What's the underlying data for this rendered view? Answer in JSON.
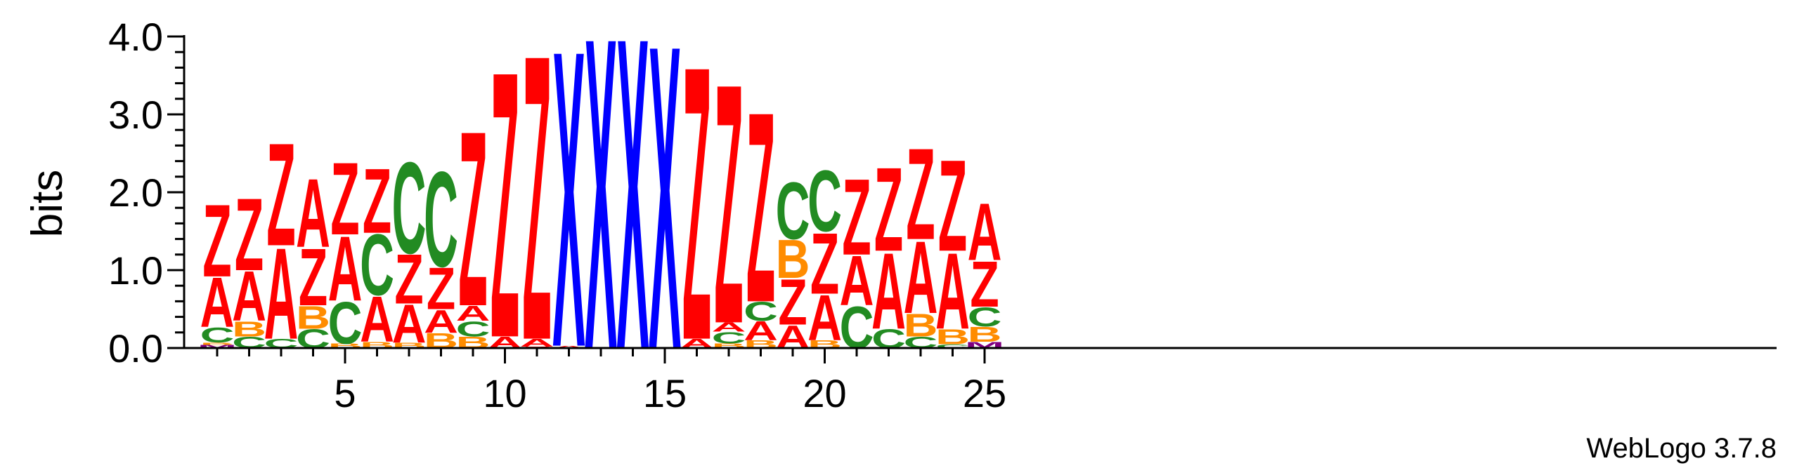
{
  "chart_data": {
    "type": "sequence_logo",
    "ylabel": "bits",
    "ylim": [
      0,
      4.0
    ],
    "yticks": [
      "0.0",
      "1.0",
      "2.0",
      "3.0",
      "4.0"
    ],
    "xticks": [
      5,
      10,
      15,
      20,
      25
    ],
    "credit": "WebLogo 3.7.8",
    "colors": {
      "Z": "#ff0000",
      "A": "#ff0000",
      "C": "#228b22",
      "B": "#ff8c00",
      "X": "#0000ff",
      "M": "#800080"
    },
    "positions": [
      {
        "x": 1,
        "stack": [
          [
            "M",
            0.04
          ],
          [
            "B",
            0.03
          ],
          [
            "C",
            0.2
          ],
          [
            "A",
            0.65
          ],
          [
            "Z",
            0.95
          ]
        ]
      },
      {
        "x": 2,
        "stack": [
          [
            "C",
            0.15
          ],
          [
            "B",
            0.2
          ],
          [
            "A",
            0.65
          ],
          [
            "Z",
            0.95
          ]
        ]
      },
      {
        "x": 3,
        "stack": [
          [
            "C",
            0.12
          ],
          [
            "A",
            1.2
          ],
          [
            "Z",
            1.35
          ]
        ]
      },
      {
        "x": 4,
        "stack": [
          [
            "C",
            0.25
          ],
          [
            "B",
            0.3
          ],
          [
            "Z",
            0.75
          ],
          [
            "A",
            0.9
          ]
        ]
      },
      {
        "x": 5,
        "stack": [
          [
            "B",
            0.06
          ],
          [
            "C",
            0.55
          ],
          [
            "A",
            0.85
          ],
          [
            "Z",
            0.95
          ]
        ]
      },
      {
        "x": 6,
        "stack": [
          [
            "B",
            0.08
          ],
          [
            "A",
            0.6
          ],
          [
            "C",
            0.8
          ],
          [
            "Z",
            0.85
          ]
        ]
      },
      {
        "x": 7,
        "stack": [
          [
            "B",
            0.07
          ],
          [
            "A",
            0.5
          ],
          [
            "Z",
            0.65
          ],
          [
            "C",
            1.2
          ]
        ]
      },
      {
        "x": 8,
        "stack": [
          [
            "B",
            0.2
          ],
          [
            "A",
            0.3
          ],
          [
            "Z",
            0.55
          ],
          [
            "C",
            1.25
          ]
        ]
      },
      {
        "x": 9,
        "stack": [
          [
            "B",
            0.15
          ],
          [
            "C",
            0.2
          ],
          [
            "A",
            0.2
          ],
          [
            "Z",
            2.3
          ]
        ]
      },
      {
        "x": 10,
        "stack": [
          [
            "A",
            0.15
          ],
          [
            "Z",
            3.5
          ]
        ]
      },
      {
        "x": 11,
        "stack": [
          [
            "Z",
            0.02
          ],
          [
            "A",
            0.1
          ],
          [
            "Z",
            3.75
          ]
        ]
      },
      {
        "x": 12,
        "stack": [
          [
            "A",
            0.03
          ],
          [
            "X",
            3.9
          ]
        ]
      },
      {
        "x": 13,
        "stack": [
          [
            "X",
            4.1
          ]
        ]
      },
      {
        "x": 14,
        "stack": [
          [
            "X",
            4.1
          ]
        ]
      },
      {
        "x": 15,
        "stack": [
          [
            "X",
            4.0
          ]
        ]
      },
      {
        "x": 16,
        "stack": [
          [
            "A",
            0.12
          ],
          [
            "Z",
            3.6
          ]
        ]
      },
      {
        "x": 17,
        "stack": [
          [
            "B",
            0.06
          ],
          [
            "C",
            0.15
          ],
          [
            "A",
            0.12
          ],
          [
            "Z",
            3.15
          ]
        ]
      },
      {
        "x": 18,
        "stack": [
          [
            "B",
            0.1
          ],
          [
            "A",
            0.25
          ],
          [
            "C",
            0.25
          ],
          [
            "Z",
            2.5
          ]
        ]
      },
      {
        "x": 19,
        "stack": [
          [
            "A",
            0.3
          ],
          [
            "Z",
            0.6
          ],
          [
            "B",
            0.5
          ],
          [
            "C",
            0.75
          ]
        ]
      },
      {
        "x": 20,
        "stack": [
          [
            "B",
            0.1
          ],
          [
            "A",
            0.6
          ],
          [
            "Z",
            0.8
          ],
          [
            "C",
            0.8
          ]
        ]
      },
      {
        "x": 21,
        "stack": [
          [
            "C",
            0.55
          ],
          [
            "A",
            0.65
          ],
          [
            "Z",
            1.0
          ]
        ]
      },
      {
        "x": 22,
        "stack": [
          [
            "C",
            0.25
          ],
          [
            "A",
            1.0
          ],
          [
            "Z",
            1.1
          ]
        ]
      },
      {
        "x": 23,
        "stack": [
          [
            "C",
            0.15
          ],
          [
            "B",
            0.3
          ],
          [
            "A",
            0.95
          ],
          [
            "Z",
            1.2
          ]
        ]
      },
      {
        "x": 24,
        "stack": [
          [
            "C",
            0.05
          ],
          [
            "B",
            0.2
          ],
          [
            "A",
            1.0
          ],
          [
            "Z",
            1.2
          ]
        ]
      },
      {
        "x": 25,
        "stack": [
          [
            "M",
            0.08
          ],
          [
            "B",
            0.2
          ],
          [
            "C",
            0.25
          ],
          [
            "Z",
            0.6
          ],
          [
            "A",
            0.75
          ]
        ]
      }
    ]
  }
}
